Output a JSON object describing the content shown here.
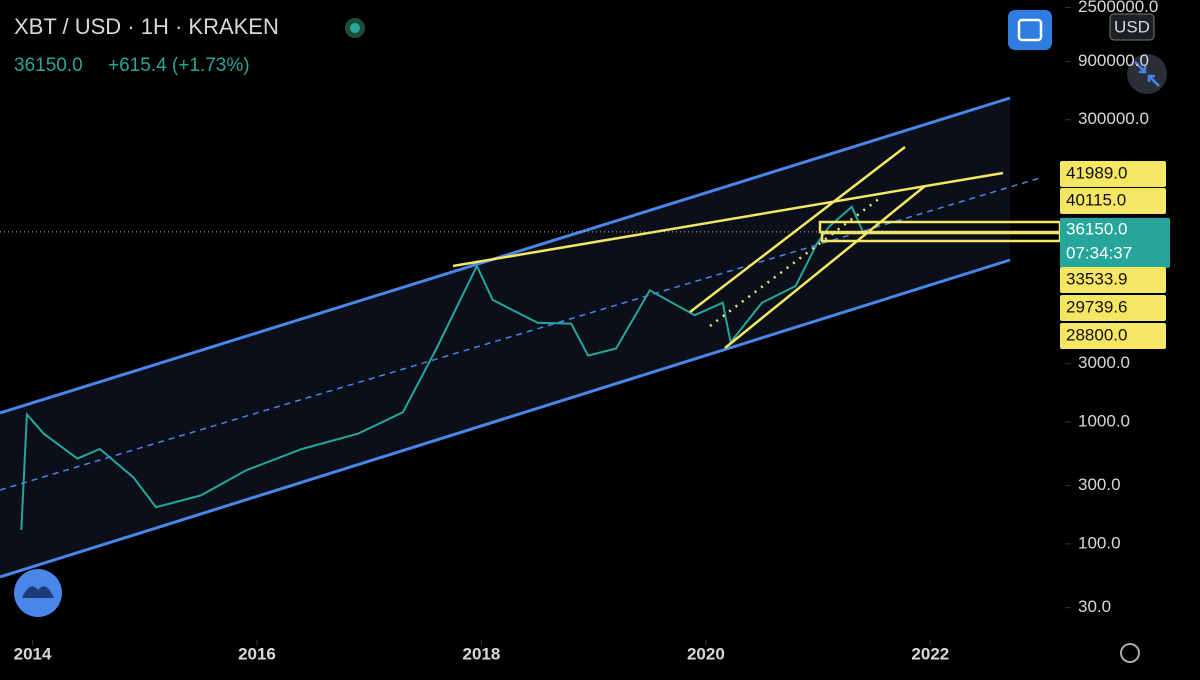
{
  "header": {
    "symbol": "XBT / USD · 1H · KRAKEN",
    "change": "+615.4 (+1.73%)",
    "currency": "USD",
    "countdown": "07:34:37"
  },
  "chart_data": {
    "type": "line",
    "log_scale": true,
    "grid": false,
    "x": [
      2013.9,
      2013.95,
      2014.1,
      2014.4,
      2014.6,
      2014.9,
      2015.1,
      2015.5,
      2015.9,
      2016.4,
      2016.9,
      2017.3,
      2017.6,
      2017.96,
      2018.1,
      2018.5,
      2018.8,
      2018.95,
      2019.2,
      2019.5,
      2019.9,
      2020.15,
      2020.22,
      2020.5,
      2020.8,
      2020.99,
      2021.1,
      2021.3,
      2021.4
    ],
    "series": [
      {
        "name": "XBT / USD",
        "color": "#26a69a",
        "values": [
          130,
          1150,
          800,
          500,
          600,
          350,
          200,
          250,
          400,
          600,
          800,
          1200,
          4000,
          19000,
          10000,
          6500,
          6400,
          3500,
          4000,
          12000,
          7500,
          9500,
          4500,
          9500,
          13000,
          29000,
          40000,
          58000,
          36150
        ]
      }
    ],
    "xlim": [
      2013.71,
      2023.2
    ],
    "xticks": [
      2014,
      2016,
      2018,
      2020,
      2022
    ],
    "ylim": [
      16.3,
      2877000
    ],
    "yticks": [
      {
        "value": 30,
        "label": "30.0"
      },
      {
        "value": 100,
        "label": "100.0"
      },
      {
        "value": 300,
        "label": "300.0"
      },
      {
        "value": 1000,
        "label": "1000.0"
      },
      {
        "value": 3000,
        "label": "3000.0"
      },
      {
        "value": 300000,
        "label": "300000.0"
      },
      {
        "value": 900000,
        "label": "900000.0"
      },
      {
        "value": 2500000,
        "label": "2500000.0"
      }
    ],
    "current_price": {
      "value": 36150,
      "label": "36150.0"
    },
    "price_labels": [
      "41989.0",
      "40115.0",
      "33533.9",
      "29739.6",
      "28800.0"
    ]
  }
}
